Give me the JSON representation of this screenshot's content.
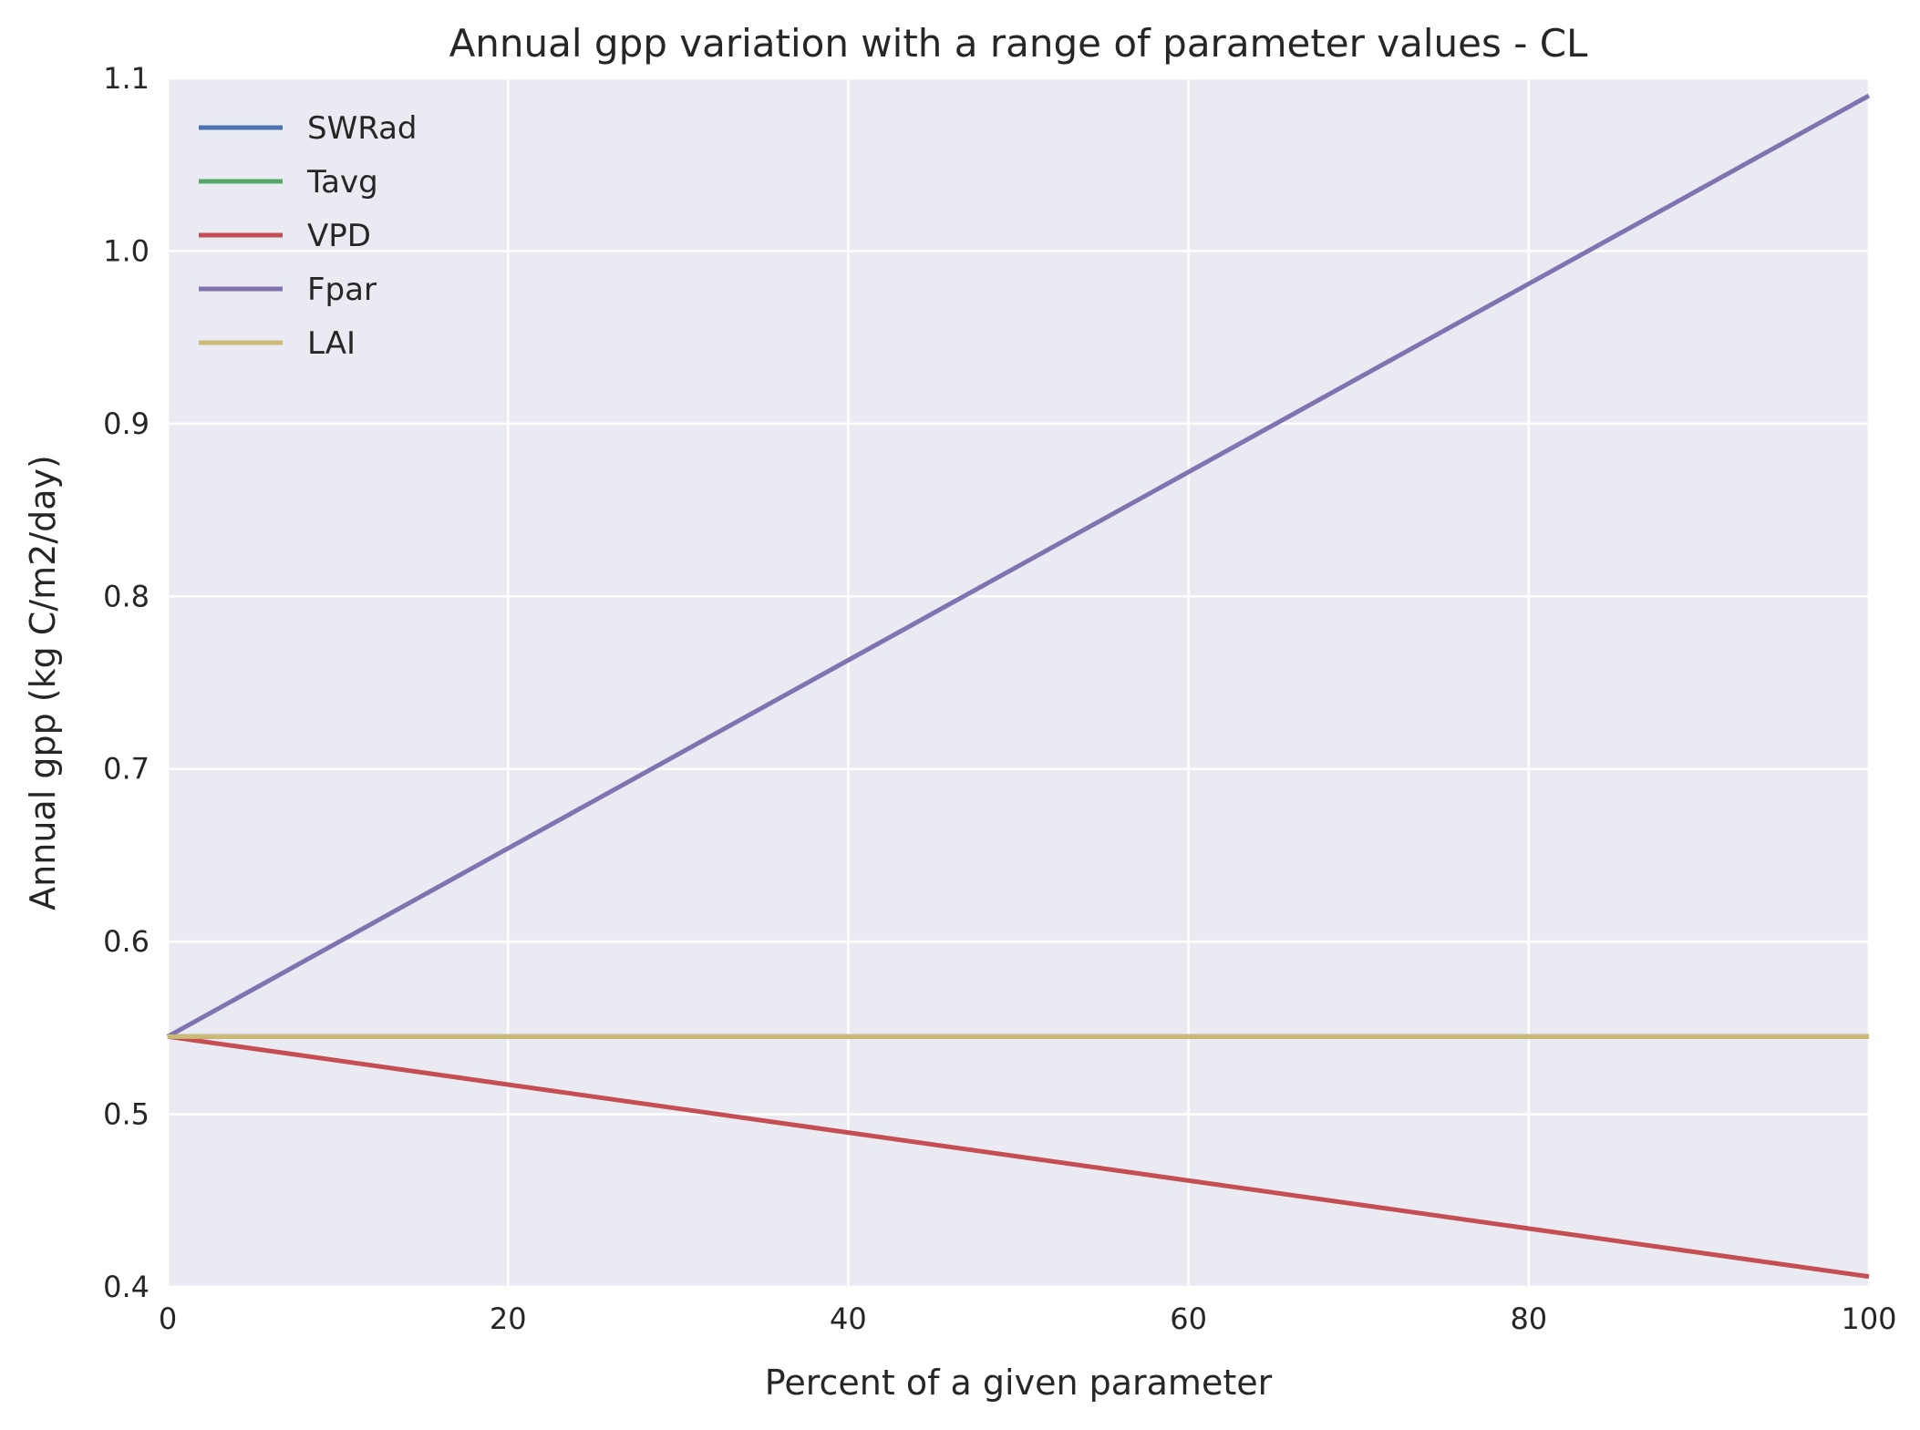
{
  "chart_data": {
    "type": "line",
    "title": "Annual gpp variation with a range of parameter values - CL",
    "xlabel": "Percent of a given parameter",
    "ylabel": "Annual gpp (kg C/m2/day)",
    "xlim": [
      0,
      100
    ],
    "ylim": [
      0.4,
      1.1
    ],
    "xticks": [
      "0",
      "20",
      "40",
      "60",
      "80",
      "100"
    ],
    "yticks": [
      "0.4",
      "0.5",
      "0.6",
      "0.7",
      "0.8",
      "0.9",
      "1.0",
      "1.1"
    ],
    "grid": true,
    "legend_position": "top-left",
    "background": "#eaeaf2",
    "series": [
      {
        "name": "SWRad",
        "color": "#4c72b0",
        "x": [
          0,
          100
        ],
        "y": [
          0.545,
          0.545
        ]
      },
      {
        "name": "Tavg",
        "color": "#55a868",
        "x": [
          0,
          100
        ],
        "y": [
          0.545,
          0.545
        ]
      },
      {
        "name": "VPD",
        "color": "#c44e52",
        "x": [
          0,
          100
        ],
        "y": [
          0.545,
          0.406
        ]
      },
      {
        "name": "Fpar",
        "color": "#8172b2",
        "x": [
          0,
          100
        ],
        "y": [
          0.545,
          1.09
        ]
      },
      {
        "name": "LAI",
        "color": "#ccb974",
        "x": [
          0,
          100
        ],
        "y": [
          0.545,
          0.545
        ]
      }
    ]
  }
}
